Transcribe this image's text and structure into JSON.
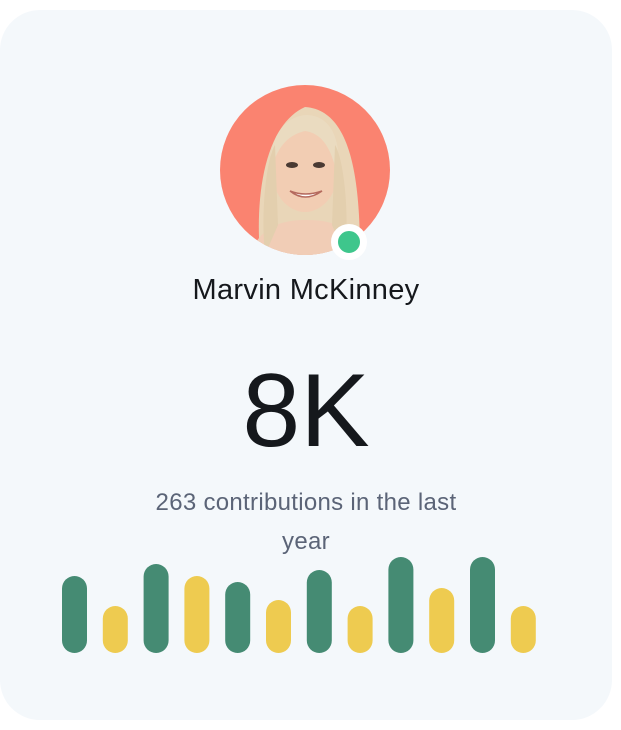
{
  "profile": {
    "name": "Marvin McKinney",
    "avatar_bg": "#fa8370",
    "status": "online",
    "status_color": "#3ec68c"
  },
  "stats": {
    "value": "8K",
    "caption": "263 contributions in the last year"
  },
  "chart_data": {
    "type": "bar",
    "values": [
      77,
      47,
      89,
      77,
      71,
      53,
      83,
      47,
      96,
      65,
      96,
      47
    ],
    "colors": [
      "#458b73",
      "#eecb50",
      "#458b73",
      "#eecb50",
      "#458b73",
      "#eecb50",
      "#458b73",
      "#eecb50",
      "#458b73",
      "#eecb50",
      "#458b73",
      "#eecb50"
    ],
    "grid": false,
    "axes": false
  }
}
